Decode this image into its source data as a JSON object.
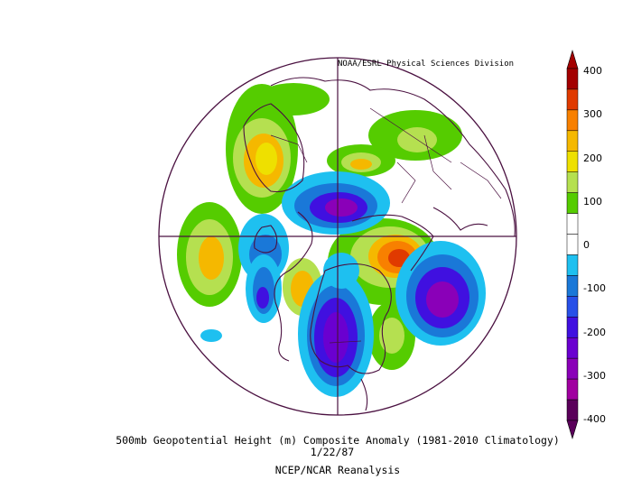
{
  "credit": "NOAA/ESRL Physical Sciences Division",
  "title": "500mb Geopotential Height (m) Composite Anomaly (1981-2010 Climatology)",
  "date": "1/22/87",
  "source": "NCEP/NCAR Reanalysis",
  "colorbar": {
    "ticks": [
      "400",
      "300",
      "200",
      "100",
      "0",
      "-100",
      "-200",
      "-300",
      "-400"
    ],
    "colors": [
      "#a30000",
      "#e03a00",
      "#f88000",
      "#f5b800",
      "#eee000",
      "#b5e050",
      "#55cc00",
      "#ffffff",
      "#ffffff",
      "#1ec0f0",
      "#1a78d8",
      "#2850e8",
      "#4010e0",
      "#6a00d0",
      "#8a00b8",
      "#a000a0",
      "#5a005a"
    ]
  },
  "map": {
    "projection": "north-polar-stereographic",
    "outline_color": "#4a1040"
  }
}
